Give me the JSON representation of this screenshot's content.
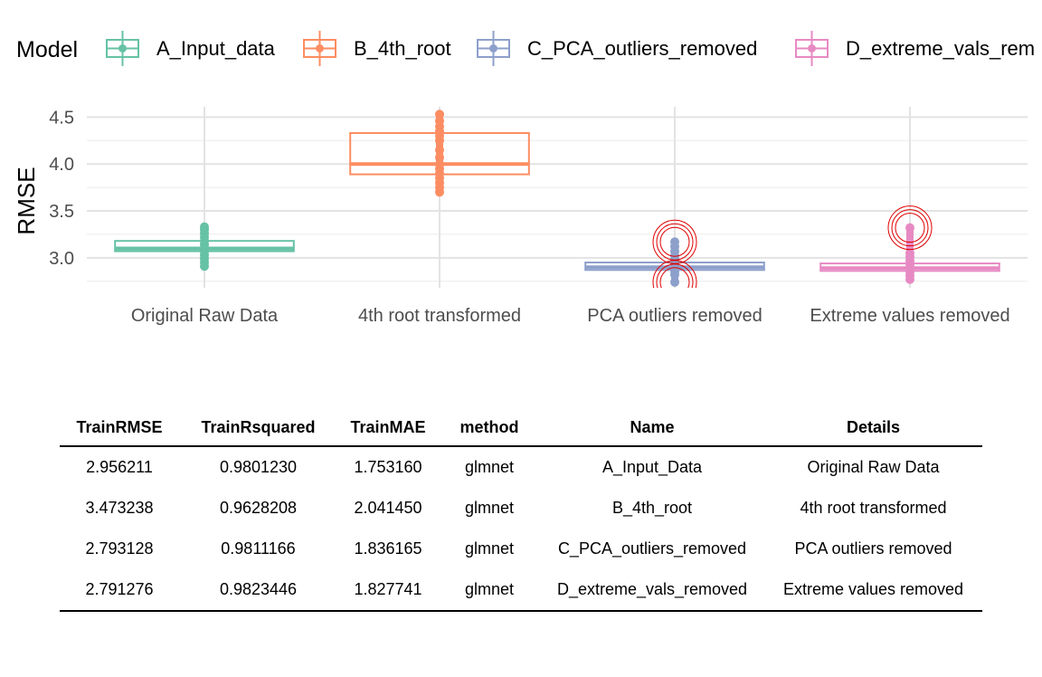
{
  "legend": {
    "title": "Model",
    "items": [
      {
        "label": "A_Input_data",
        "color": "#66c2a5"
      },
      {
        "label": "B_4th_root",
        "color": "#fc8d62"
      },
      {
        "label": "C_PCA_outliers_removed",
        "color": "#8da0cb"
      },
      {
        "label": "D_extreme_vals_rem",
        "color": "#e78ac3"
      }
    ]
  },
  "chart_data": {
    "type": "boxplot",
    "ylabel": "RMSE",
    "xlabel": "",
    "categories": [
      "Original Raw Data",
      "4th root transformed",
      "PCA outliers removed",
      "Extreme values removed"
    ],
    "yticks": [
      "3.0",
      "3.5",
      "4.0",
      "4.5"
    ],
    "ylim": [
      2.68,
      4.61
    ],
    "legend_position": "top",
    "grid": true,
    "series": [
      {
        "name": "A_Input_data",
        "color": "#66c2a5",
        "q1": 3.07,
        "median": 3.1,
        "q3": 3.18,
        "points": [
          2.91,
          2.95,
          2.99,
          3.03,
          3.07,
          3.1,
          3.14,
          3.18,
          3.22,
          3.26,
          3.3,
          3.33
        ],
        "highlight": []
      },
      {
        "name": "B_4th_root",
        "color": "#fc8d62",
        "q1": 3.89,
        "median": 4.0,
        "q3": 4.33,
        "points": [
          3.7,
          3.75,
          3.8,
          3.85,
          3.9,
          3.95,
          4.0,
          4.07,
          4.15,
          4.25,
          4.3,
          4.35,
          4.4,
          4.46,
          4.53
        ],
        "highlight": []
      },
      {
        "name": "C_PCA_outliers_removed",
        "color": "#8da0cb",
        "q1": 2.87,
        "median": 2.9,
        "q3": 2.95,
        "points": [
          2.74,
          2.82,
          2.85,
          2.88,
          2.91,
          2.94,
          2.98,
          3.02,
          3.07,
          3.12,
          3.17
        ],
        "highlight": [
          2.74,
          3.17
        ]
      },
      {
        "name": "D_extreme_vals_rem",
        "color": "#e78ac3",
        "q1": 2.86,
        "median": 2.89,
        "q3": 2.94,
        "points": [
          2.77,
          2.81,
          2.85,
          2.89,
          2.93,
          2.97,
          3.01,
          3.05,
          3.32
        ],
        "highlight": [
          3.32
        ]
      }
    ]
  },
  "table": {
    "headers": [
      "TrainRMSE",
      "TrainRsquared",
      "TrainMAE",
      "method",
      "Name",
      "Details"
    ],
    "rows": [
      [
        "2.956211",
        "0.9801230",
        "1.753160",
        "glmnet",
        "A_Input_Data",
        "Original Raw Data"
      ],
      [
        "3.473238",
        "0.9628208",
        "2.041450",
        "glmnet",
        "B_4th_root",
        "4th root transformed"
      ],
      [
        "2.793128",
        "0.9811166",
        "1.836165",
        "glmnet",
        "C_PCA_outliers_removed",
        "PCA outliers removed"
      ],
      [
        "2.791276",
        "0.9823446",
        "1.827741",
        "glmnet",
        "D_extreme_vals_removed",
        "Extreme values removed"
      ]
    ]
  }
}
